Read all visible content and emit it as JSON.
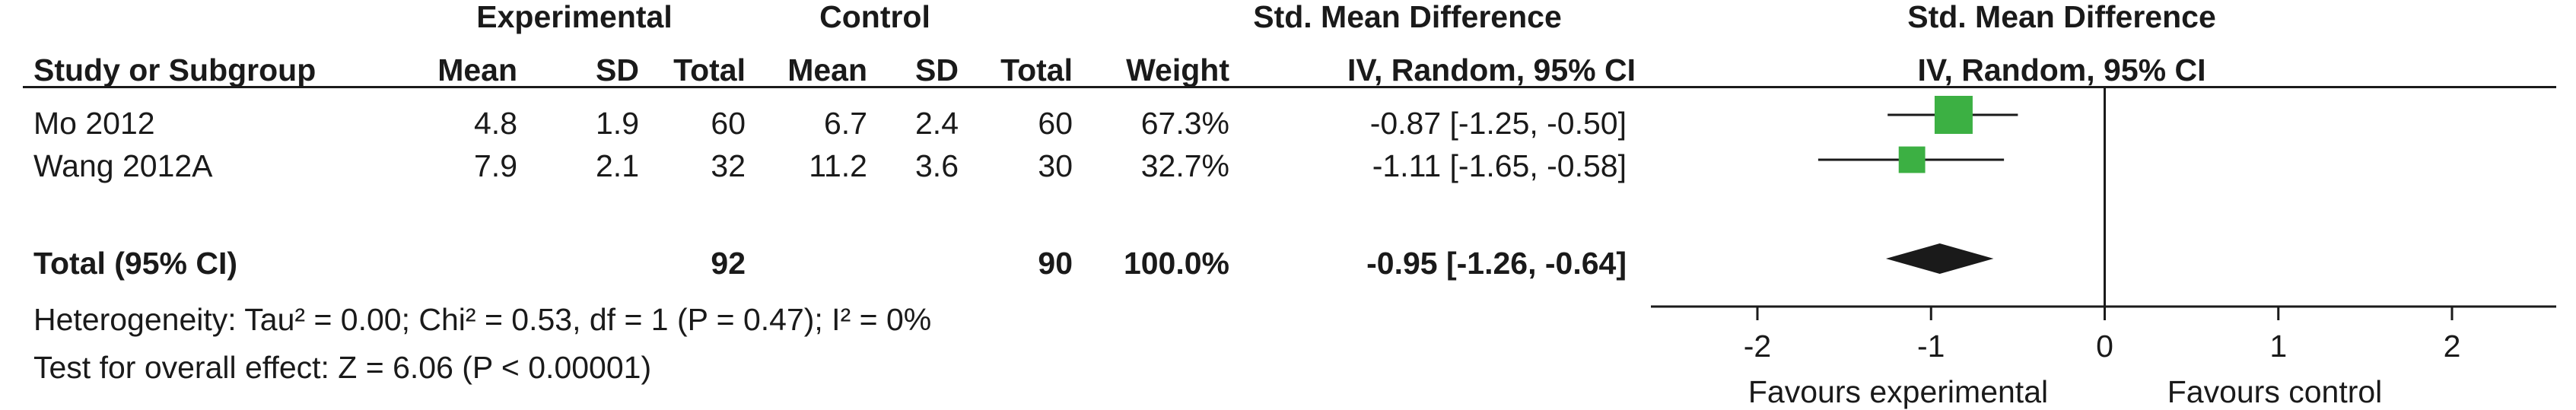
{
  "header": {
    "experimental": "Experimental",
    "control": "Control",
    "smd_left": "Std. Mean Difference",
    "smd_right": "Std. Mean Difference",
    "method_left": "IV, Random, 95% CI",
    "method_right": "IV, Random, 95% CI",
    "columns": {
      "study": "Study or Subgroup",
      "exp_mean": "Mean",
      "exp_sd": "SD",
      "exp_total": "Total",
      "ctl_mean": "Mean",
      "ctl_sd": "SD",
      "ctl_total": "Total",
      "weight": "Weight"
    }
  },
  "studies": [
    {
      "study": "Mo 2012",
      "exp_mean": "4.8",
      "exp_sd": "1.9",
      "exp_total": "60",
      "ctl_mean": "6.7",
      "ctl_sd": "2.4",
      "ctl_total": "60",
      "weight": "67.3%",
      "ci_text": "-0.87 [-1.25, -0.50]"
    },
    {
      "study": "Wang 2012A",
      "exp_mean": "7.9",
      "exp_sd": "2.1",
      "exp_total": "32",
      "ctl_mean": "11.2",
      "ctl_sd": "3.6",
      "ctl_total": "30",
      "weight": "32.7%",
      "ci_text": "-1.11 [-1.65, -0.58]"
    }
  ],
  "total": {
    "label": "Total (95% CI)",
    "exp_total": "92",
    "ctl_total": "90",
    "weight": "100.0%",
    "ci_text": "-0.95 [-1.26, -0.64]"
  },
  "footer": {
    "heterogeneity": "Heterogeneity: Tau² = 0.00; Chi² = 0.53, df = 1 (P = 0.47); I² = 0%",
    "overall": "Test for overall effect: Z = 6.06 (P < 0.00001)"
  },
  "axis": {
    "favours_left": "Favours experimental",
    "favours_right": "Favours control"
  },
  "colors": {
    "marker": "#3cb043",
    "line": "#1a1a1a"
  },
  "chart_data": {
    "type": "scatter",
    "title": "",
    "xlabel": "",
    "ylabel": "",
    "xlim": [
      -2,
      2
    ],
    "x_ticks": [
      "-2",
      "-1",
      "0",
      "1",
      "2"
    ],
    "null_line": 0,
    "series": [
      {
        "name": "Mo 2012",
        "smd": -0.87,
        "ci_low": -1.25,
        "ci_high": -0.5,
        "weight": 67.3
      },
      {
        "name": "Wang 2012A",
        "smd": -1.11,
        "ci_low": -1.65,
        "ci_high": -0.58,
        "weight": 32.7
      },
      {
        "name": "Total (95% CI)",
        "smd": -0.95,
        "ci_low": -1.26,
        "ci_high": -0.64,
        "weight": 100.0,
        "pooled": true
      }
    ]
  }
}
